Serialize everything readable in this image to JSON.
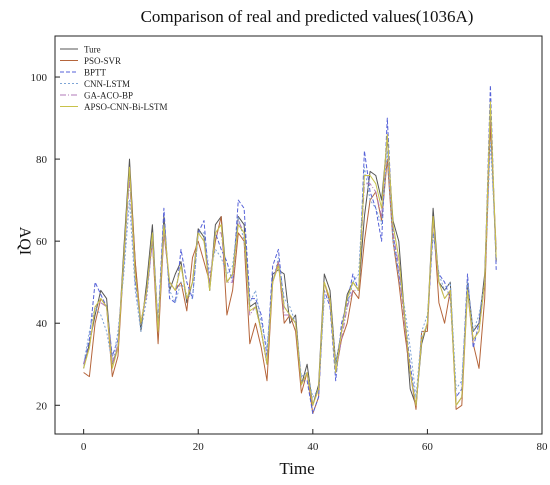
{
  "chart_data": {
    "type": "line",
    "title": "Comparison of real and predicted values(1036A)",
    "xlabel": "Time",
    "ylabel": "AQI",
    "xlim": [
      -5,
      80
    ],
    "ylim": [
      13,
      110
    ],
    "x_ticks": [
      0,
      20,
      40,
      60,
      80
    ],
    "y_ticks": [
      20,
      40,
      60,
      80,
      100
    ],
    "grid": false,
    "legend_position": "top-left",
    "series": [
      {
        "name": "Ture",
        "color": "#555555",
        "dash": "",
        "values": [
          29,
          35,
          42,
          48,
          46,
          30,
          34,
          58,
          80,
          55,
          38,
          50,
          64,
          38,
          66,
          48,
          52,
          55,
          45,
          50,
          63,
          61,
          48,
          64,
          66,
          50,
          52,
          66,
          64,
          44,
          45,
          38,
          30,
          52,
          53,
          52,
          40,
          42,
          25,
          30,
          20,
          25,
          52,
          48,
          30,
          38,
          47,
          50,
          48,
          66,
          77,
          76,
          70,
          85,
          65,
          60,
          42,
          24,
          20,
          35,
          40,
          68,
          50,
          48,
          50,
          20,
          22,
          50,
          38,
          40,
          52,
          90,
          55
        ]
      },
      {
        "name": "PSO-SVR",
        "color": "#b5653b",
        "dash": "",
        "values": [
          28,
          27,
          40,
          46,
          44,
          27,
          32,
          55,
          78,
          55,
          40,
          48,
          60,
          35,
          62,
          50,
          48,
          50,
          43,
          56,
          60,
          55,
          50,
          60,
          66,
          42,
          48,
          62,
          60,
          35,
          40,
          34,
          26,
          50,
          55,
          40,
          42,
          38,
          23,
          28,
          18,
          22,
          50,
          45,
          28,
          36,
          40,
          48,
          46,
          60,
          70,
          72,
          65,
          80,
          60,
          50,
          38,
          28,
          19,
          38,
          38,
          66,
          45,
          40,
          48,
          19,
          20,
          48,
          35,
          29,
          46,
          89,
          58
        ]
      },
      {
        "name": "BPTT",
        "color": "#5561d8",
        "dash": "4,2",
        "values": [
          30,
          36,
          50,
          47,
          44,
          32,
          36,
          54,
          77,
          50,
          40,
          48,
          62,
          40,
          68,
          46,
          45,
          58,
          50,
          46,
          62,
          65,
          48,
          62,
          58,
          55,
          50,
          70,
          68,
          46,
          46,
          42,
          32,
          54,
          58,
          44,
          42,
          40,
          26,
          26,
          18,
          22,
          48,
          44,
          26,
          40,
          45,
          52,
          48,
          82,
          72,
          68,
          60,
          90,
          62,
          52,
          42,
          30,
          20,
          36,
          40,
          62,
          52,
          50,
          46,
          22,
          24,
          52,
          34,
          40,
          50,
          98,
          53
        ]
      },
      {
        "name": "CNN-LSTM",
        "color": "#7ea5d6",
        "dash": "2,2",
        "values": [
          30,
          38,
          44,
          42,
          38,
          30,
          38,
          52,
          70,
          48,
          38,
          46,
          60,
          40,
          64,
          48,
          45,
          50,
          47,
          46,
          62,
          62,
          52,
          58,
          56,
          52,
          54,
          66,
          60,
          45,
          48,
          40,
          34,
          50,
          56,
          46,
          44,
          40,
          27,
          28,
          22,
          24,
          46,
          46,
          30,
          38,
          44,
          50,
          52,
          78,
          70,
          68,
          64,
          82,
          60,
          52,
          44,
          34,
          22,
          38,
          42,
          62,
          52,
          48,
          50,
          24,
          26,
          50,
          38,
          42,
          50,
          84,
          58
        ]
      },
      {
        "name": "GA-ACO-BP",
        "color": "#b07ab8",
        "dash": "6,2,1,2",
        "values": [
          30,
          34,
          44,
          45,
          44,
          30,
          35,
          56,
          75,
          52,
          40,
          47,
          60,
          38,
          62,
          50,
          48,
          54,
          46,
          50,
          62,
          60,
          50,
          62,
          62,
          50,
          50,
          65,
          62,
          42,
          44,
          38,
          30,
          50,
          55,
          42,
          42,
          40,
          25,
          28,
          20,
          24,
          50,
          46,
          28,
          36,
          44,
          48,
          48,
          74,
          74,
          72,
          66,
          86,
          62,
          54,
          40,
          28,
          20,
          36,
          40,
          65,
          50,
          46,
          48,
          20,
          22,
          48,
          36,
          38,
          50,
          92,
          56
        ]
      },
      {
        "name": "APSO-CNN-Bi-LSTM",
        "color": "#c8c24a",
        "dash": "",
        "values": [
          29,
          34,
          44,
          46,
          44,
          29,
          34,
          56,
          78,
          52,
          40,
          48,
          62,
          38,
          64,
          50,
          48,
          54,
          46,
          50,
          62,
          60,
          48,
          62,
          64,
          50,
          52,
          64,
          62,
          43,
          44,
          38,
          30,
          50,
          54,
          44,
          42,
          40,
          25,
          28,
          20,
          24,
          50,
          46,
          28,
          38,
          46,
          50,
          48,
          76,
          76,
          74,
          68,
          86,
          64,
          56,
          42,
          28,
          20,
          36,
          40,
          66,
          50,
          46,
          48,
          20,
          22,
          48,
          36,
          38,
          50,
          94,
          56
        ]
      }
    ]
  }
}
